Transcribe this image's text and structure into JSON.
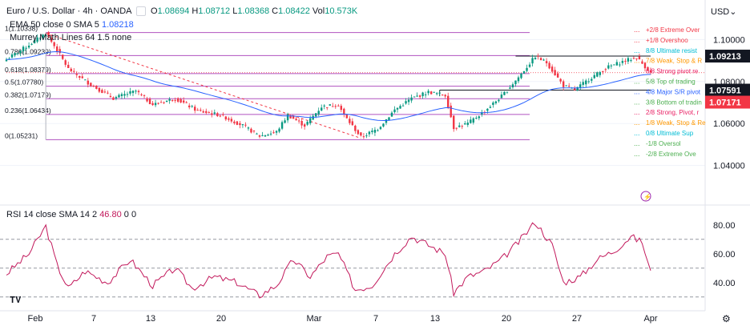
{
  "header": {
    "symbol": "Euro / U.S. Dollar · 4h · OANDA",
    "ohlc": {
      "o_label": "O",
      "o": "1.08694",
      "h_label": "H",
      "h": "1.08712",
      "l_label": "L",
      "l": "1.08368",
      "c_label": "C",
      "c": "1.08422",
      "vol_label": "Vol",
      "vol": "10.573K"
    },
    "ema_label": "EMA 50 close 0 SMA 5",
    "ema_value": "1.08218",
    "murrey_label": "Murrey Math Lines 64 1.5 none"
  },
  "currency": "USD",
  "colors": {
    "bull": "#089981",
    "bear": "#f23645",
    "ema": "#2962ff",
    "fib": "#9c27b0",
    "rsi": "#c2185b",
    "label_dark": "#131722",
    "label_red": "#f23645"
  },
  "chart_data": [
    {
      "type": "candlestick",
      "title": "Euro / U.S. Dollar · 4h · OANDA",
      "x_ticks": [
        "Feb",
        "7",
        "13",
        "20",
        "Mar",
        "7",
        "13",
        "20",
        "27",
        "Apr"
      ],
      "y_ticks": [
        "1.04000",
        "1.06000",
        "1.08000",
        "1.10000"
      ],
      "ylim": [
        1.028,
        1.112
      ],
      "price_labels": [
        "1.09213",
        "1.07591",
        "1.07171"
      ],
      "fib_levels": [
        {
          "label": "1(1.10338)",
          "value": 1.10338
        },
        {
          "label": "0.786(1.09239)",
          "value": 1.09239
        },
        {
          "label": "0.618(1.08379)",
          "value": 1.08379
        },
        {
          "label": "0.5(1.07780)",
          "value": 1.0778
        },
        {
          "label": "0.382(1.07179)",
          "value": 1.07179
        },
        {
          "label": "0.236(1.06434)",
          "value": 1.06434
        },
        {
          "label": "0(1.05231)",
          "value": 1.05231
        }
      ],
      "murrey_labels": [
        {
          "label": "+2/8 Extreme Over",
          "color": "#f23645"
        },
        {
          "label": "+1/8 Overshoo",
          "color": "#f23645"
        },
        {
          "label": "8/8 Ultimate resist",
          "color": "#00bcd4"
        },
        {
          "label": "7/8 Weak, Stop & R",
          "color": "#ff9800"
        },
        {
          "label": "6/8 Strong pivot re",
          "color": "#e91e63"
        },
        {
          "label": "5/8 Top of trading",
          "color": "#4caf50"
        },
        {
          "label": "4/8 Major S/R pivot",
          "color": "#2962ff"
        },
        {
          "label": "3/8 Bottom of tradin",
          "color": "#4caf50"
        },
        {
          "label": "2/8 Strong, Pivot, r",
          "color": "#e91e63"
        },
        {
          "label": "1/8 Weak, Stop & Re",
          "color": "#ff9800"
        },
        {
          "label": "0/8 Ultimate Sup",
          "color": "#00bcd4"
        },
        {
          "label": "-1/8 Oversol",
          "color": "#4caf50"
        },
        {
          "label": "-2/8 Extreme Ove",
          "color": "#4caf50"
        }
      ],
      "anchors": [
        {
          "i": 0,
          "v": 1.0905
        },
        {
          "i": 8,
          "v": 1.0975
        },
        {
          "i": 14,
          "v": 1.103
        },
        {
          "i": 18,
          "v": 1.095
        },
        {
          "i": 22,
          "v": 1.086
        },
        {
          "i": 30,
          "v": 1.0785
        },
        {
          "i": 38,
          "v": 1.072
        },
        {
          "i": 46,
          "v": 1.0755
        },
        {
          "i": 52,
          "v": 1.069
        },
        {
          "i": 60,
          "v": 1.072
        },
        {
          "i": 68,
          "v": 1.066
        },
        {
          "i": 76,
          "v": 1.064
        },
        {
          "i": 84,
          "v": 1.059
        },
        {
          "i": 90,
          "v": 1.054
        },
        {
          "i": 96,
          "v": 1.056
        },
        {
          "i": 100,
          "v": 1.064
        },
        {
          "i": 106,
          "v": 1.059
        },
        {
          "i": 112,
          "v": 1.068
        },
        {
          "i": 118,
          "v": 1.069
        },
        {
          "i": 120,
          "v": 1.064
        },
        {
          "i": 126,
          "v": 1.0535
        },
        {
          "i": 132,
          "v": 1.0575
        },
        {
          "i": 138,
          "v": 1.0665
        },
        {
          "i": 144,
          "v": 1.072
        },
        {
          "i": 150,
          "v": 1.075
        },
        {
          "i": 156,
          "v": 1.0735
        },
        {
          "i": 159,
          "v": 1.058
        },
        {
          "i": 164,
          "v": 1.06
        },
        {
          "i": 170,
          "v": 1.066
        },
        {
          "i": 176,
          "v": 1.073
        },
        {
          "i": 182,
          "v": 1.082
        },
        {
          "i": 188,
          "v": 1.092
        },
        {
          "i": 192,
          "v": 1.089
        },
        {
          "i": 198,
          "v": 1.078
        },
        {
          "i": 202,
          "v": 1.076
        },
        {
          "i": 208,
          "v": 1.082
        },
        {
          "i": 214,
          "v": 1.087
        },
        {
          "i": 220,
          "v": 1.09
        },
        {
          "i": 224,
          "v": 1.0915
        },
        {
          "i": 229,
          "v": 1.0842
        }
      ],
      "current_close": 1.08422
    },
    {
      "type": "line",
      "title": "RSI 14 close SMA 14 2",
      "series": [
        {
          "name": "RSI 14 close SMA 14 2",
          "values": []
        }
      ],
      "value_label": "46.80",
      "extra": "0 0",
      "y_ticks": [
        "40.00",
        "60.00",
        "80.00"
      ],
      "ylim": [
        26,
        86
      ],
      "bands": [
        70,
        50,
        30
      ],
      "anchors": [
        {
          "i": 0,
          "v": 46
        },
        {
          "i": 8,
          "v": 60
        },
        {
          "i": 14,
          "v": 79
        },
        {
          "i": 18,
          "v": 52
        },
        {
          "i": 22,
          "v": 36
        },
        {
          "i": 28,
          "v": 48
        },
        {
          "i": 36,
          "v": 40
        },
        {
          "i": 44,
          "v": 56
        },
        {
          "i": 52,
          "v": 38
        },
        {
          "i": 60,
          "v": 50
        },
        {
          "i": 66,
          "v": 36
        },
        {
          "i": 74,
          "v": 44
        },
        {
          "i": 82,
          "v": 40
        },
        {
          "i": 90,
          "v": 31
        },
        {
          "i": 96,
          "v": 38
        },
        {
          "i": 102,
          "v": 56
        },
        {
          "i": 108,
          "v": 44
        },
        {
          "i": 114,
          "v": 58
        },
        {
          "i": 118,
          "v": 60
        },
        {
          "i": 124,
          "v": 35
        },
        {
          "i": 130,
          "v": 38
        },
        {
          "i": 138,
          "v": 60
        },
        {
          "i": 144,
          "v": 72
        },
        {
          "i": 150,
          "v": 66
        },
        {
          "i": 156,
          "v": 60
        },
        {
          "i": 159,
          "v": 33
        },
        {
          "i": 164,
          "v": 44
        },
        {
          "i": 170,
          "v": 48
        },
        {
          "i": 176,
          "v": 56
        },
        {
          "i": 182,
          "v": 68
        },
        {
          "i": 188,
          "v": 82
        },
        {
          "i": 194,
          "v": 66
        },
        {
          "i": 198,
          "v": 40
        },
        {
          "i": 204,
          "v": 44
        },
        {
          "i": 210,
          "v": 56
        },
        {
          "i": 216,
          "v": 62
        },
        {
          "i": 222,
          "v": 72
        },
        {
          "i": 226,
          "v": 68
        },
        {
          "i": 229,
          "v": 46.8
        }
      ]
    }
  ]
}
